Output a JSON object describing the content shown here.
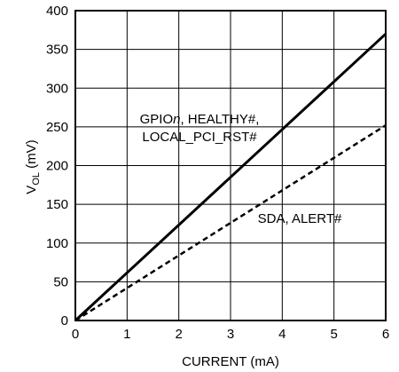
{
  "chart_data": {
    "type": "line",
    "xlabel": "CURRENT (mA)",
    "ylabel_main": "V",
    "ylabel_sub": "OL",
    "ylabel_unit": " (mV)",
    "xlim": [
      0,
      6
    ],
    "ylim": [
      0,
      400
    ],
    "x_ticks": [
      "0",
      "1",
      "2",
      "3",
      "4",
      "5",
      "6"
    ],
    "y_ticks": [
      "0",
      "50",
      "100",
      "150",
      "200",
      "250",
      "300",
      "350",
      "400"
    ],
    "grid": true,
    "series": [
      {
        "style": "solid",
        "x": [
          0,
          6
        ],
        "y": [
          0,
          370
        ]
      },
      {
        "style": "dashed",
        "x": [
          0,
          6
        ],
        "y": [
          0,
          252
        ]
      }
    ],
    "annotations": {
      "solid_line1_a": "GPIO",
      "solid_line1_b": "n",
      "solid_line1_c": ", HEALTHY#,",
      "solid_line2": "LOCAL_PCI_RST#",
      "dashed": "SDA, ALERT#"
    }
  }
}
